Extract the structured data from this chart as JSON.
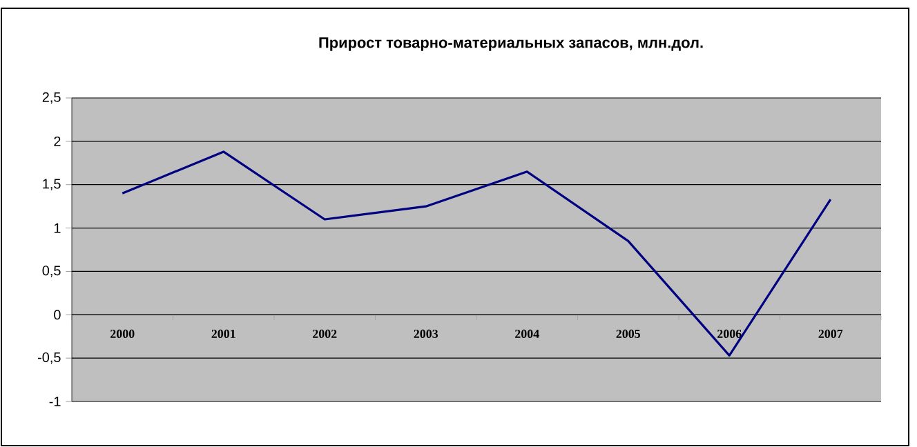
{
  "chart_data": {
    "type": "line",
    "title": "Прирост товарно-материальных запасов, млн.дол.",
    "categories": [
      "2000",
      "2001",
      "2002",
      "2003",
      "2004",
      "2005",
      "2006",
      "2007"
    ],
    "series": [
      {
        "color": "#000080",
        "values": [
          1.4,
          1.88,
          1.1,
          1.25,
          1.65,
          0.85,
          -0.47,
          1.33
        ]
      }
    ],
    "ylim": [
      -1,
      2.5
    ],
    "yticks": [
      {
        "value": -1,
        "label": "-1"
      },
      {
        "value": -0.5,
        "label": "-0,5"
      },
      {
        "value": 0,
        "label": "0"
      },
      {
        "value": 0.5,
        "label": "0,5"
      },
      {
        "value": 1,
        "label": "1"
      },
      {
        "value": 1.5,
        "label": "1,5"
      },
      {
        "value": 2,
        "label": "2"
      },
      {
        "value": 2.5,
        "label": "2,5"
      }
    ],
    "grid": "y",
    "marker": "none",
    "line_style": "solid"
  }
}
